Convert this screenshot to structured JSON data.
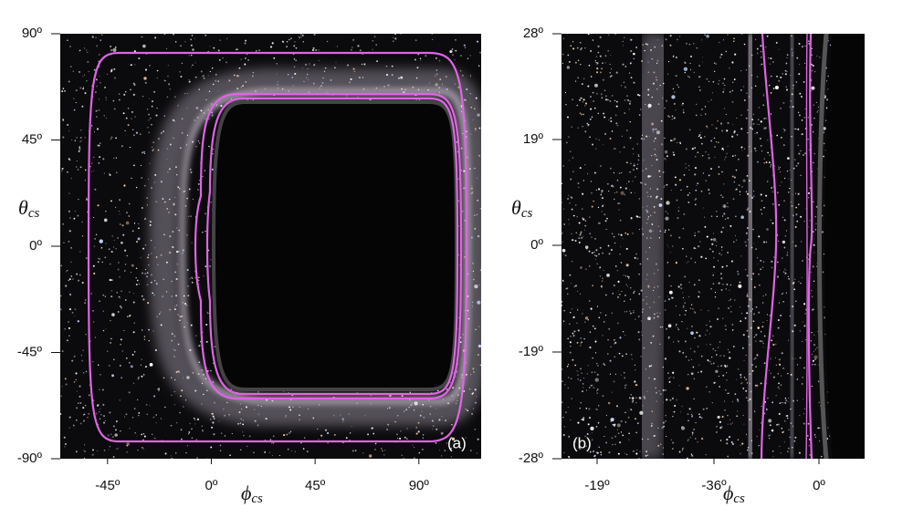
{
  "chart_data": [
    {
      "type": "image",
      "panel_label": "(a)",
      "xlabel": "ϕ",
      "xlabel_sub": "cs",
      "ylabel": "θ",
      "ylabel_sub": "cs",
      "xlim": [
        -65.5,
        117
      ],
      "ylim": [
        -90,
        90
      ],
      "xticks": [
        {
          "value": -45,
          "label": "-45º"
        },
        {
          "value": 0,
          "label": "0º"
        },
        {
          "value": 45,
          "label": "45º"
        },
        {
          "value": 90,
          "label": "90º"
        }
      ],
      "yticks": [
        {
          "value": 90,
          "label": "90º"
        },
        {
          "value": 45,
          "label": "45º"
        },
        {
          "value": 0,
          "label": "0º"
        },
        {
          "value": -45,
          "label": "-45º"
        },
        {
          "value": -90,
          "label": "-90º"
        }
      ],
      "curve_color": "#e064e6"
    },
    {
      "type": "image",
      "panel_label": "(b)",
      "xlabel": "ϕ",
      "xlabel_sub": "cs",
      "ylabel": "θ",
      "ylabel_sub": "cs",
      "xtick_labels": [
        "-19º",
        "-36º",
        "0º"
      ],
      "ytick_labels": [
        "28º",
        "19º",
        "0º",
        "-19º",
        "-28º"
      ],
      "curve_color": "#e064e6"
    }
  ]
}
